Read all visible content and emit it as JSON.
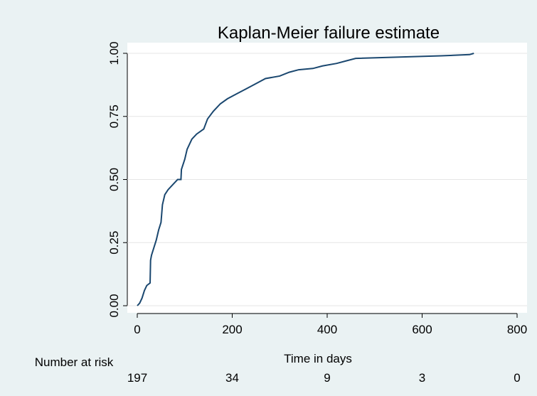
{
  "chart_data": {
    "type": "line",
    "title": "Kaplan-Meier failure estimate",
    "xlabel": "Time in days",
    "x": [
      0,
      5,
      10,
      15,
      20,
      27,
      28,
      30,
      35,
      40,
      45,
      50,
      53,
      58,
      65,
      75,
      85,
      92,
      93,
      100,
      105,
      115,
      125,
      140,
      148,
      160,
      175,
      190,
      210,
      230,
      250,
      270,
      300,
      320,
      340,
      370,
      390,
      420,
      440,
      460,
      640,
      700,
      709
    ],
    "series": [
      {
        "name": "Failure estimate",
        "color": "#1a476f",
        "values": [
          0,
          0.01,
          0.03,
          0.06,
          0.08,
          0.09,
          0.18,
          0.2,
          0.23,
          0.26,
          0.3,
          0.33,
          0.4,
          0.44,
          0.46,
          0.48,
          0.5,
          0.5,
          0.54,
          0.58,
          0.62,
          0.66,
          0.68,
          0.7,
          0.74,
          0.77,
          0.8,
          0.82,
          0.84,
          0.86,
          0.88,
          0.9,
          0.91,
          0.925,
          0.935,
          0.94,
          0.95,
          0.96,
          0.97,
          0.98,
          0.99,
          0.995,
          1.0
        ]
      }
    ],
    "xlim": [
      0,
      800
    ],
    "xticks": [
      0,
      200,
      400,
      600,
      800
    ],
    "ylim": [
      0,
      1
    ],
    "yticks": [
      {
        "value": 0,
        "label": "0.00"
      },
      {
        "value": 0.25,
        "label": "0.25"
      },
      {
        "value": 0.5,
        "label": "0.50"
      },
      {
        "value": 0.75,
        "label": "0.75"
      },
      {
        "value": 1,
        "label": "1.00"
      }
    ],
    "grid": true,
    "number_at_risk": {
      "label": "Number at risk",
      "values": [
        197,
        34,
        9,
        3,
        0
      ]
    }
  }
}
